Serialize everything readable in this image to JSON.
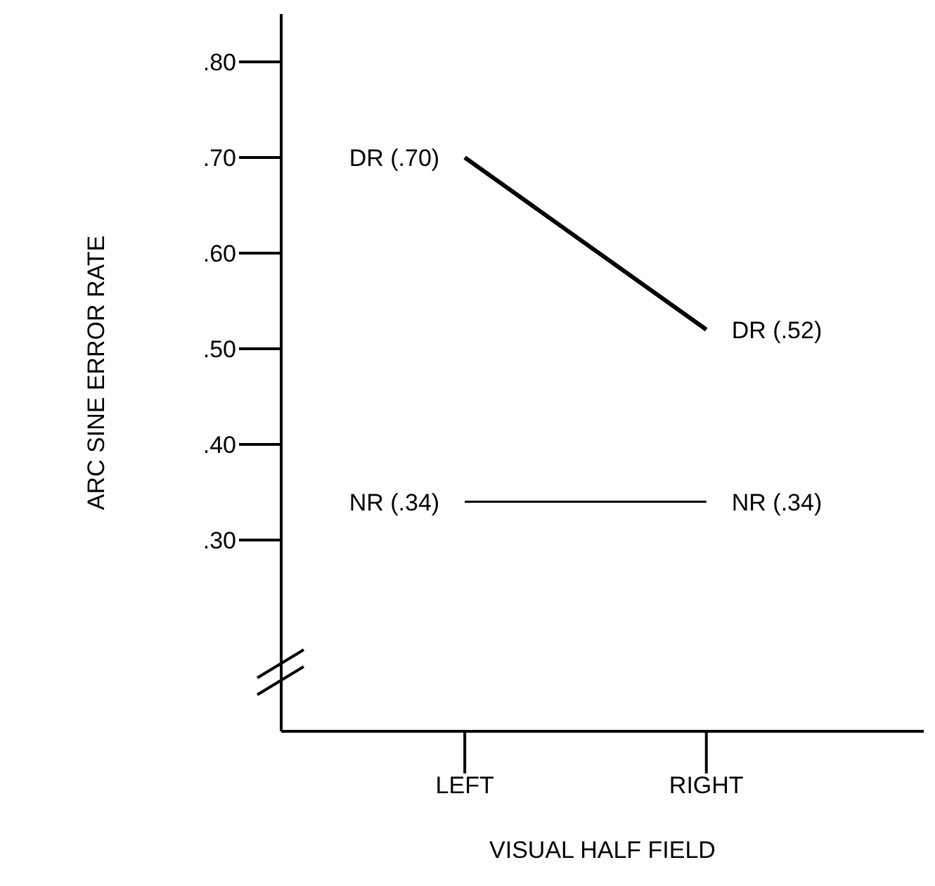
{
  "chart_data": {
    "type": "line",
    "xlabel": "VISUAL HALF FIELD",
    "ylabel": "ARC SINE ERROR RATE",
    "categories": [
      "LEFT",
      "RIGHT"
    ],
    "series": [
      {
        "color": "#000000",
        "values": [
          0.7,
          0.52
        ],
        "value_labels": [
          "DR (.70)",
          "DR (.52)"
        ]
      },
      {
        "color": "#000000",
        "values": [
          0.34,
          0.34
        ],
        "value_labels": [
          "NR (.34)",
          "NR (.34)"
        ]
      }
    ],
    "ylim": [
      0.1,
      0.85
    ],
    "yticks": [
      {
        "value": 0.3,
        "label": ".30"
      },
      {
        "value": 0.4,
        "label": ".40"
      },
      {
        "value": 0.5,
        "label": ".50"
      },
      {
        "value": 0.6,
        "label": ".60"
      },
      {
        "value": 0.7,
        "label": ".70"
      },
      {
        "value": 0.8,
        "label": ".80"
      }
    ],
    "grid": false,
    "legend": false,
    "marker": "none",
    "line_style": "solid"
  }
}
